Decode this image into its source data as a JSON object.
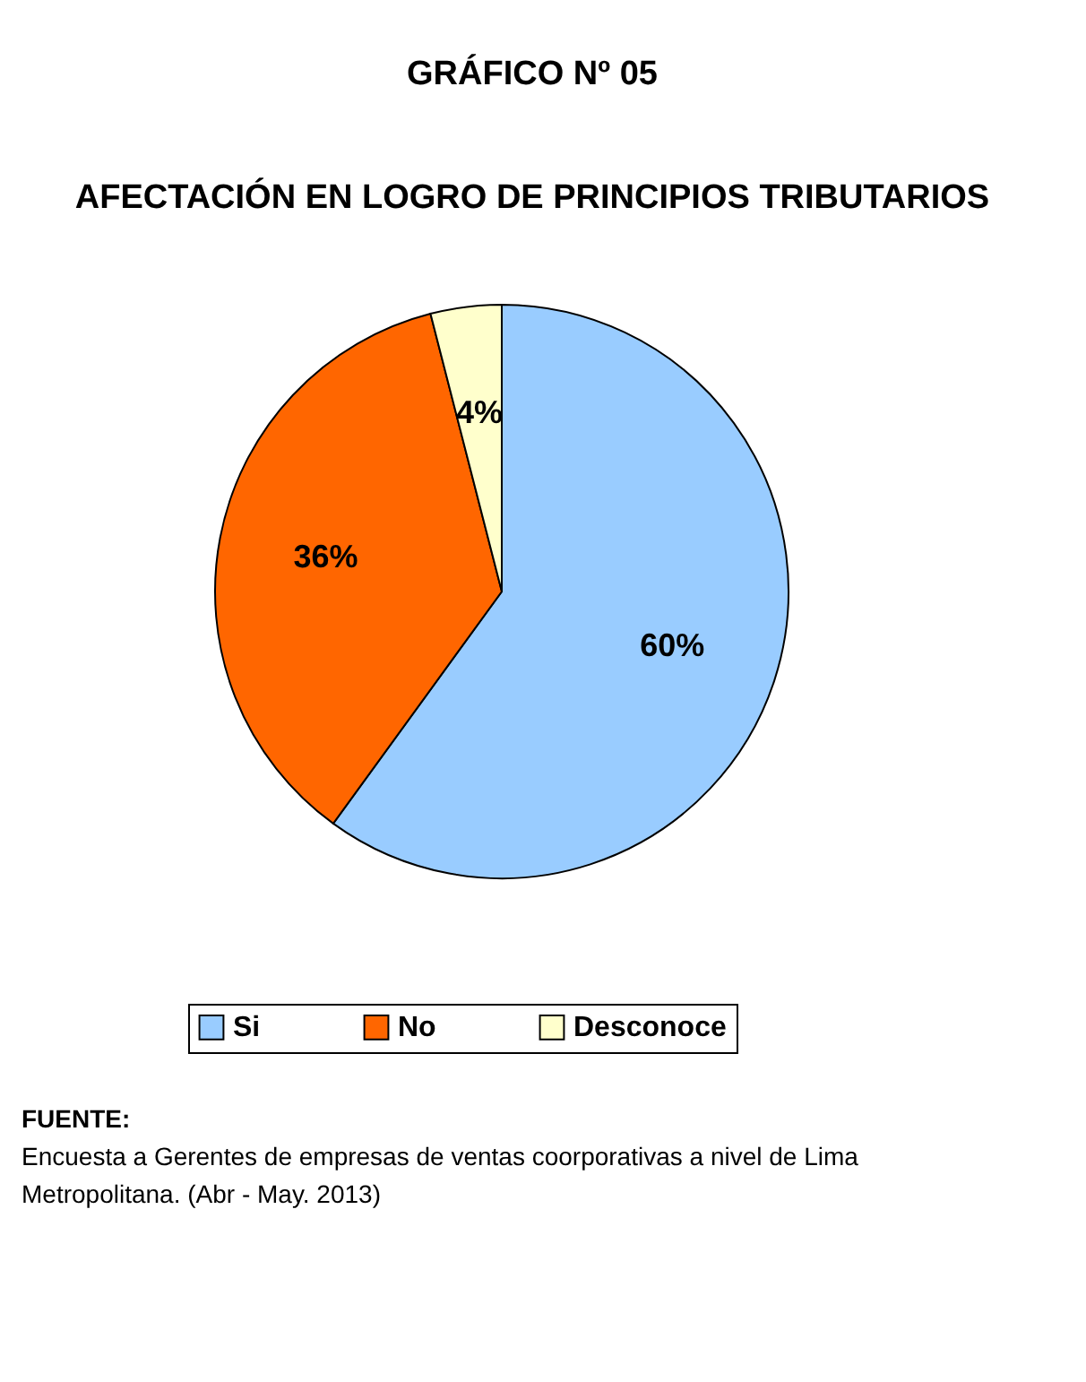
{
  "chart_data": {
    "type": "pie",
    "title": "GRÁFICO Nº 05",
    "subtitle": "AFECTACIÓN EN LOGRO DE PRINCIPIOS TRIBUTARIOS",
    "categories": [
      "Si",
      "No",
      "Desconoce"
    ],
    "values": [
      60,
      36,
      4
    ],
    "value_labels": [
      "60%",
      "36%",
      "4%"
    ],
    "colors": [
      "#99ccff",
      "#ff6600",
      "#ffffcc"
    ],
    "legend": "bottom",
    "annotations": [
      "FUENTE:",
      "Encuesta a Gerentes de empresas de ventas coorporativas a nivel de Lima Metropolitana. (Abr - May. 2013)"
    ]
  }
}
